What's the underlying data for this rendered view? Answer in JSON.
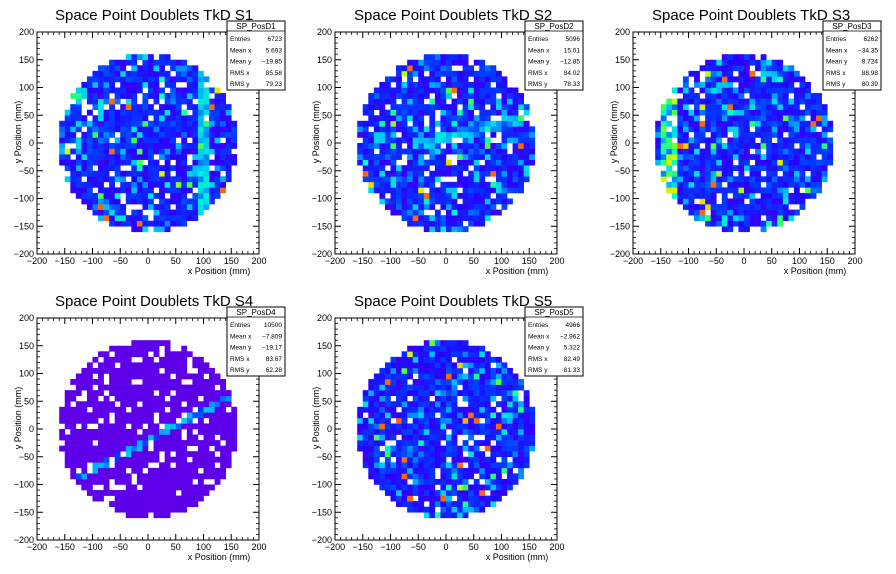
{
  "chart_data": [
    {
      "type": "heatmap",
      "title": "Space Point Doublets TkD S1",
      "xlabel": "x Position (mm)",
      "ylabel": "y Position (mm)",
      "xlim": [
        -200,
        200
      ],
      "ylim": [
        -200,
        200
      ],
      "xticks": [
        -200,
        -150,
        -100,
        -50,
        0,
        50,
        100,
        150,
        200
      ],
      "yticks": [
        -200,
        -150,
        -100,
        -50,
        0,
        50,
        100,
        150,
        200
      ],
      "disk_radius": 160,
      "bin_size": 10,
      "palette": "rainbow",
      "features": [
        {
          "kind": "vertical-band",
          "x": 100,
          "level": 0.45
        }
      ],
      "stats": {
        "name": "SP_PosD1",
        "rows": [
          [
            "Entries",
            "6723"
          ],
          [
            "Mean x",
            "5.693"
          ],
          [
            "Mean y",
            "-19.85"
          ],
          [
            "RMS x",
            "85.58"
          ],
          [
            "RMS y",
            "79.23"
          ]
        ]
      }
    },
    {
      "type": "heatmap",
      "title": "Space Point Doublets TkD S2",
      "xlabel": "x Position (mm)",
      "ylabel": "y Position (mm)",
      "xlim": [
        -200,
        200
      ],
      "ylim": [
        -200,
        200
      ],
      "xticks": [
        -200,
        -150,
        -100,
        -50,
        0,
        50,
        100,
        150,
        200
      ],
      "yticks": [
        -200,
        -150,
        -100,
        -50,
        0,
        50,
        100,
        150,
        200
      ],
      "disk_radius": 160,
      "bin_size": 10,
      "palette": "rainbow",
      "features": [
        {
          "kind": "diagonal-band",
          "level": 0.4
        }
      ],
      "stats": {
        "name": "SP_PosD2",
        "rows": [
          [
            "Entries",
            "5096"
          ],
          [
            "Mean x",
            "15.01"
          ],
          [
            "Mean y",
            "-12.85"
          ],
          [
            "RMS x",
            "84.02"
          ],
          [
            "RMS y",
            "78.33"
          ]
        ]
      }
    },
    {
      "type": "heatmap",
      "title": "Space Point Doublets TkD S3",
      "xlabel": "x Position (mm)",
      "ylabel": "y Position (mm)",
      "xlim": [
        -200,
        200
      ],
      "ylim": [
        -200,
        200
      ],
      "xticks": [
        -200,
        -150,
        -100,
        -50,
        0,
        50,
        100,
        150,
        200
      ],
      "yticks": [
        -200,
        -150,
        -100,
        -50,
        0,
        50,
        100,
        150,
        200
      ],
      "disk_radius": 160,
      "bin_size": 10,
      "palette": "rainbow",
      "features": [
        {
          "kind": "left-edge-band",
          "x": -135,
          "level": 0.7
        }
      ],
      "stats": {
        "name": "SP_PosD3",
        "rows": [
          [
            "Entries",
            "6262"
          ],
          [
            "Mean x",
            "-34.35"
          ],
          [
            "Mean y",
            "8.724"
          ],
          [
            "RMS x",
            "88.98"
          ],
          [
            "RMS y",
            "80.39"
          ]
        ]
      }
    },
    {
      "type": "heatmap",
      "title": "Space Point Doublets TkD S4",
      "xlabel": "x Position (mm)",
      "ylabel": "y Position (mm)",
      "xlim": [
        -200,
        200
      ],
      "ylim": [
        -200,
        200
      ],
      "xticks": [
        -200,
        -150,
        -100,
        -50,
        0,
        50,
        100,
        150,
        200
      ],
      "yticks": [
        -200,
        -150,
        -100,
        -50,
        0,
        50,
        100,
        150,
        200
      ],
      "disk_radius": 160,
      "bin_size": 10,
      "palette": "uniform-violet",
      "features": [
        {
          "kind": "line",
          "from": [
            -130,
            -90
          ],
          "to": [
            150,
            60
          ],
          "level": 0.35
        }
      ],
      "stats": {
        "name": "SP_PosD4",
        "rows": [
          [
            "Entries",
            "10500"
          ],
          [
            "Mean x",
            "-7.809"
          ],
          [
            "Mean y",
            "-19.17"
          ],
          [
            "RMS x",
            "83.67"
          ],
          [
            "RMS y",
            "62.28"
          ]
        ]
      }
    },
    {
      "type": "heatmap",
      "title": "Space Point Doublets TkD S5",
      "xlabel": "x Position (mm)",
      "ylabel": "y Position (mm)",
      "xlim": [
        -200,
        200
      ],
      "ylim": [
        -200,
        200
      ],
      "xticks": [
        -200,
        -150,
        -100,
        -50,
        0,
        50,
        100,
        150,
        200
      ],
      "yticks": [
        -200,
        -150,
        -100,
        -50,
        0,
        50,
        100,
        150,
        200
      ],
      "disk_radius": 160,
      "bin_size": 10,
      "palette": "rainbow",
      "features": [],
      "stats": {
        "name": "SP_PosD5",
        "rows": [
          [
            "Entries",
            "4966"
          ],
          [
            "Mean x",
            "-2.962"
          ],
          [
            "Mean y",
            "5.322"
          ],
          [
            "RMS x",
            "82.49"
          ],
          [
            "RMS y",
            "81.33"
          ]
        ]
      }
    }
  ]
}
